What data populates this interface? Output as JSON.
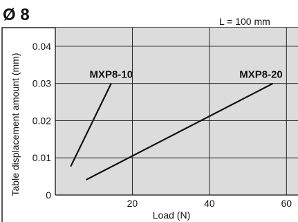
{
  "page": {
    "title": "Ø 8",
    "note": "L = 100 mm"
  },
  "chart_data": {
    "type": "line",
    "xlabel": "Load (N)",
    "ylabel": "Table displacement amount (mm)",
    "xlim": [
      0,
      63
    ],
    "ylim": [
      0,
      0.045
    ],
    "xticks": [
      "20",
      "40",
      "60"
    ],
    "xtick_values": [
      20,
      40,
      60
    ],
    "yticks": [
      "0",
      "0.01",
      "0.02",
      "0.03",
      "0.04"
    ],
    "ytick_values": [
      0,
      0.01,
      0.02,
      0.03,
      0.04
    ],
    "grid": true,
    "background": "#dcdcdc",
    "line_color": "#111111",
    "series": [
      {
        "name": "MXP8-10",
        "x": [
          4,
          14.5
        ],
        "y": [
          0.0077,
          0.03
        ]
      },
      {
        "name": "MXP8-20",
        "x": [
          8,
          56.5
        ],
        "y": [
          0.0041,
          0.03
        ]
      }
    ]
  }
}
